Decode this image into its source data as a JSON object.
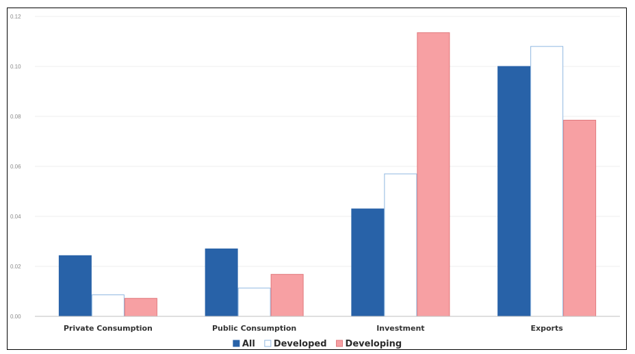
{
  "chart_data": {
    "type": "bar",
    "title": "",
    "xlabel": "",
    "ylabel": "",
    "categories": [
      "Private Consumption",
      "Public Consumption",
      "Investment",
      "Exports"
    ],
    "y_ticks": [
      "0.00",
      "0.02",
      "0.04",
      "0.06",
      "0.08",
      "0.10",
      "0.12"
    ],
    "ylim": [
      0,
      0.12
    ],
    "grid": true,
    "legend_position": "bottom-center",
    "series": [
      {
        "name": "All",
        "values": [
          0.0243,
          0.027,
          0.043,
          0.1
        ],
        "fill": "#2862a8",
        "stroke": "#2862a8"
      },
      {
        "name": "Developed",
        "values": [
          0.0086,
          0.0113,
          0.057,
          0.108
        ],
        "fill": "#ffffff",
        "stroke": "#8fb7e0"
      },
      {
        "name": "Developing",
        "values": [
          0.0072,
          0.0168,
          0.1135,
          0.0785
        ],
        "fill": "#f7a0a3",
        "stroke": "#e0787c"
      }
    ],
    "colors": {
      "gridline": "#ececec",
      "axis": "#bfbfbf"
    }
  }
}
